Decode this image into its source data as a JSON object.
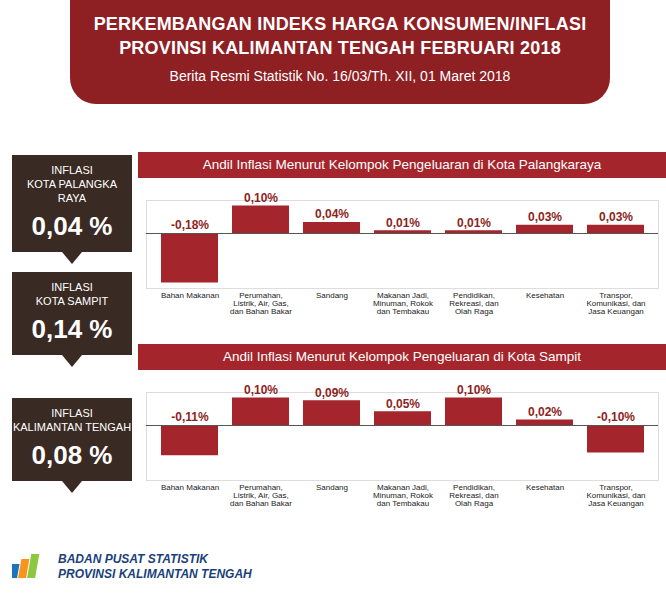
{
  "header": {
    "title_lines": [
      "PERKEMBANGAN INDEKS HARGA KONSUMEN/INFLASI",
      "PROVINSI KALIMANTAN TENGAH FEBRUARI 2018"
    ],
    "subtitle": "Berita Resmi Statistik No. 16/03/Th. XII, 01 Maret 2018"
  },
  "summary": [
    {
      "lines": [
        "INFLASI",
        "KOTA PALANGKA RAYA"
      ],
      "value": "0,04 %"
    },
    {
      "lines": [
        "INFLASI",
        "KOTA SAMPIT"
      ],
      "value": "0,14 %"
    },
    {
      "lines": [
        "INFLASI",
        "KALIMANTAN TENGAH"
      ],
      "value": "0,08 %"
    }
  ],
  "chart_data": [
    {
      "type": "bar",
      "title": "Andil Inflasi Menurut Kelompok Pengeluaran di Kota Palangkaraya",
      "categories": [
        "Bahan Makanan",
        "Perumahan, Listrik, Air, Gas, dan Bahan Bakar",
        "Sandang",
        "Makanan Jadi, Minuman, Rokok dan Tembakau",
        "Pendidikan, Rekreasi, dan Olah Raga",
        "Kesehatan",
        "Transpor, Komunikasi, dan Jasa Keuangan"
      ],
      "values": [
        -0.18,
        0.1,
        0.04,
        0.01,
        0.01,
        0.03,
        0.03
      ],
      "value_labels": [
        "-0,18%",
        "0,10%",
        "0,04%",
        "0,01%",
        "0,01%",
        "0,03%",
        "0,03%"
      ],
      "color": "#a4262c",
      "ylim": [
        -0.2,
        0.12
      ],
      "yticks": [],
      "data_labels": true,
      "tick_labels": "x"
    },
    {
      "type": "bar",
      "title": "Andil Inflasi Menurut Kelompok Pengeluaran di Kota Sampit",
      "categories": [
        "Bahan Makanan",
        "Perumahan, Listrik, Air, Gas, dan Bahan Bakar",
        "Sandang",
        "Makanan Jadi, Minuman, Rokok dan Tembakau",
        "Pendidikan, Rekreasi, dan Olah Raga",
        "Kesehatan",
        "Transpor, Komunikasi, dan Jasa Keuangan"
      ],
      "values": [
        -0.11,
        0.1,
        0.09,
        0.05,
        0.1,
        0.02,
        -0.1
      ],
      "value_labels": [
        "-0,11%",
        "0,10%",
        "0,09%",
        "0,05%",
        "0,10%",
        "0,02%",
        "-0,10%"
      ],
      "color": "#a4262c",
      "ylim": [
        -0.2,
        0.12
      ],
      "yticks": [],
      "data_labels": true,
      "tick_labels": "x"
    }
  ],
  "footer": {
    "lines": [
      "BADAN PUSAT STATISTIK",
      "PROVINSI KALIMANTAN TENGAH"
    ]
  }
}
